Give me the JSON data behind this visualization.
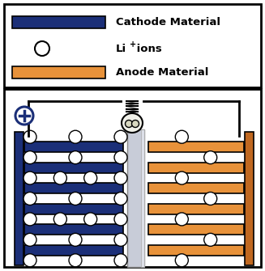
{
  "cathode_color": "#1b2f78",
  "cathode_color_side": "#2a4aaa",
  "anode_color": "#e8923a",
  "anode_color_side": "#c06820",
  "separator_color": "#c8ccd8",
  "separator_edge": "#888888",
  "bg_color": "#ffffff",
  "ion_color": "#ffffff",
  "ion_edge": "#222222",
  "plus_color": "#1b2f78",
  "wire_color": "#111111",
  "legend_cathode": "Cathode Material",
  "legend_ion": "Li",
  "legend_ion_super": "+",
  "legend_ion_rest": " ions",
  "legend_anode": "Anode Material",
  "figw": 3.27,
  "figh": 3.35,
  "dpi": 100
}
